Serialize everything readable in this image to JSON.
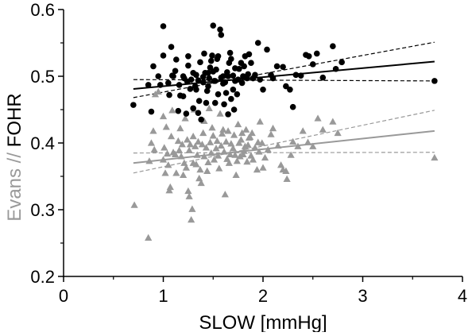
{
  "chart_data": {
    "type": "scatter",
    "xlabel": "SLOW [mmHg]",
    "ylabel_parts": [
      {
        "text": "Evans",
        "color": "#999999"
      },
      {
        "text": " // ",
        "color": "#999999"
      },
      {
        "text": "FOHR",
        "color": "#000000"
      }
    ],
    "xlim": [
      0,
      4
    ],
    "ylim": [
      0.2,
      0.6
    ],
    "xticks": [
      0,
      1,
      2,
      3,
      4
    ],
    "yticks": [
      0.2,
      0.3,
      0.4,
      0.5,
      0.6
    ],
    "xtick_labels": [
      "0",
      "1",
      "2",
      "3",
      "4"
    ],
    "ytick_labels": [
      "0.2",
      "0.3",
      "0.4",
      "0.5",
      "0.6"
    ],
    "grid": false,
    "legend": "none",
    "series": [
      {
        "marker": "circle",
        "color": "#000000",
        "points": [
          [
            0.7,
            0.457
          ],
          [
            0.85,
            0.487
          ],
          [
            0.88,
            0.447
          ],
          [
            0.9,
            0.515
          ],
          [
            0.95,
            0.5
          ],
          [
            0.97,
            0.487
          ],
          [
            1.0,
            0.531
          ],
          [
            1.0,
            0.575
          ],
          [
            1.05,
            0.49
          ],
          [
            1.06,
            0.472
          ],
          [
            1.08,
            0.544
          ],
          [
            1.09,
            0.501
          ],
          [
            1.1,
            0.5
          ],
          [
            1.12,
            0.508
          ],
          [
            1.13,
            0.525
          ],
          [
            1.15,
            0.448
          ],
          [
            1.16,
            0.487
          ],
          [
            1.17,
            0.471
          ],
          [
            1.2,
            0.5
          ],
          [
            1.2,
            0.47
          ],
          [
            1.21,
            0.497
          ],
          [
            1.23,
            0.444
          ],
          [
            1.24,
            0.492
          ],
          [
            1.25,
            0.53
          ],
          [
            1.25,
            0.516
          ],
          [
            1.27,
            0.481
          ],
          [
            1.28,
            0.495
          ],
          [
            1.3,
            0.505
          ],
          [
            1.3,
            0.452
          ],
          [
            1.32,
            0.485
          ],
          [
            1.33,
            0.502
          ],
          [
            1.33,
            0.48
          ],
          [
            1.35,
            0.494
          ],
          [
            1.35,
            0.445
          ],
          [
            1.36,
            0.463
          ],
          [
            1.37,
            0.521
          ],
          [
            1.38,
            0.435
          ],
          [
            1.4,
            0.499
          ],
          [
            1.4,
            0.491
          ],
          [
            1.41,
            0.534
          ],
          [
            1.42,
            0.505
          ],
          [
            1.43,
            0.46
          ],
          [
            1.44,
            0.478
          ],
          [
            1.45,
            0.505
          ],
          [
            1.45,
            0.485
          ],
          [
            1.46,
            0.497
          ],
          [
            1.47,
            0.513
          ],
          [
            1.48,
            0.523
          ],
          [
            1.49,
            0.531
          ],
          [
            1.5,
            0.576
          ],
          [
            1.5,
            0.507
          ],
          [
            1.51,
            0.493
          ],
          [
            1.52,
            0.493
          ],
          [
            1.52,
            0.46
          ],
          [
            1.53,
            0.51
          ],
          [
            1.54,
            0.526
          ],
          [
            1.55,
            0.473
          ],
          [
            1.55,
            0.53
          ],
          [
            1.57,
            0.57
          ],
          [
            1.58,
            0.498
          ],
          [
            1.58,
            0.562
          ],
          [
            1.6,
            0.489
          ],
          [
            1.6,
            0.5
          ],
          [
            1.61,
            0.458
          ],
          [
            1.62,
            0.491
          ],
          [
            1.63,
            0.475
          ],
          [
            1.64,
            0.506
          ],
          [
            1.65,
            0.443
          ],
          [
            1.65,
            0.5
          ],
          [
            1.66,
            0.52
          ],
          [
            1.67,
            0.535
          ],
          [
            1.68,
            0.526
          ],
          [
            1.68,
            0.466
          ],
          [
            1.7,
            0.501
          ],
          [
            1.7,
            0.48
          ],
          [
            1.71,
            0.45
          ],
          [
            1.72,
            0.493
          ],
          [
            1.72,
            0.512
          ],
          [
            1.74,
            0.473
          ],
          [
            1.75,
            0.495
          ],
          [
            1.76,
            0.511
          ],
          [
            1.78,
            0.52
          ],
          [
            1.79,
            0.49
          ],
          [
            1.8,
            0.5
          ],
          [
            1.81,
            0.515
          ],
          [
            1.82,
            0.53
          ],
          [
            1.84,
            0.497
          ],
          [
            1.85,
            0.503
          ],
          [
            1.86,
            0.533
          ],
          [
            1.88,
            0.52
          ],
          [
            1.9,
            0.497
          ],
          [
            1.92,
            0.502
          ],
          [
            1.95,
            0.55
          ],
          [
            1.97,
            0.495
          ],
          [
            2.0,
            0.48
          ],
          [
            2.04,
            0.54
          ],
          [
            2.08,
            0.502
          ],
          [
            2.1,
            0.497
          ],
          [
            2.14,
            0.515
          ],
          [
            2.2,
            0.514
          ],
          [
            2.23,
            0.485
          ],
          [
            2.27,
            0.48
          ],
          [
            2.3,
            0.454
          ],
          [
            2.33,
            0.502
          ],
          [
            2.38,
            0.501
          ],
          [
            2.43,
            0.532
          ],
          [
            2.46,
            0.53
          ],
          [
            2.5,
            0.518
          ],
          [
            2.54,
            0.534
          ],
          [
            2.6,
            0.498
          ],
          [
            2.7,
            0.545
          ],
          [
            2.73,
            0.511
          ],
          [
            2.79,
            0.521
          ],
          [
            3.72,
            0.493
          ]
        ]
      },
      {
        "marker": "triangle",
        "color": "#999999",
        "points": [
          [
            0.71,
            0.307
          ],
          [
            0.85,
            0.258
          ],
          [
            0.86,
            0.373
          ],
          [
            0.88,
            0.4
          ],
          [
            0.9,
            0.418
          ],
          [
            0.91,
            0.39
          ],
          [
            0.92,
            0.473
          ],
          [
            0.95,
            0.477
          ],
          [
            1.0,
            0.375
          ],
          [
            1.0,
            0.44
          ],
          [
            1.01,
            0.393
          ],
          [
            1.02,
            0.355
          ],
          [
            1.03,
            0.424
          ],
          [
            1.04,
            0.384
          ],
          [
            1.05,
            0.367
          ],
          [
            1.06,
            0.329
          ],
          [
            1.07,
            0.334
          ],
          [
            1.08,
            0.41
          ],
          [
            1.09,
            0.449
          ],
          [
            1.1,
            0.386
          ],
          [
            1.12,
            0.383
          ],
          [
            1.13,
            0.355
          ],
          [
            1.15,
            0.403
          ],
          [
            1.16,
            0.389
          ],
          [
            1.17,
            0.422
          ],
          [
            1.18,
            0.38
          ],
          [
            1.19,
            0.398
          ],
          [
            1.2,
            0.352
          ],
          [
            1.21,
            0.37
          ],
          [
            1.22,
            0.437
          ],
          [
            1.23,
            0.363
          ],
          [
            1.24,
            0.405
          ],
          [
            1.25,
            0.328
          ],
          [
            1.26,
            0.32
          ],
          [
            1.26,
            0.389
          ],
          [
            1.27,
            0.398
          ],
          [
            1.28,
            0.285
          ],
          [
            1.29,
            0.301
          ],
          [
            1.3,
            0.37
          ],
          [
            1.3,
            0.41
          ],
          [
            1.31,
            0.45
          ],
          [
            1.32,
            0.395
          ],
          [
            1.33,
            0.368
          ],
          [
            1.34,
            0.382
          ],
          [
            1.35,
            0.402
          ],
          [
            1.36,
            0.347
          ],
          [
            1.37,
            0.36
          ],
          [
            1.38,
            0.34
          ],
          [
            1.39,
            0.398
          ],
          [
            1.4,
            0.415
          ],
          [
            1.41,
            0.38
          ],
          [
            1.41,
            0.433
          ],
          [
            1.43,
            0.393
          ],
          [
            1.44,
            0.358
          ],
          [
            1.45,
            0.371
          ],
          [
            1.46,
            0.452
          ],
          [
            1.47,
            0.401
          ],
          [
            1.48,
            0.385
          ],
          [
            1.49,
            0.423
          ],
          [
            1.5,
            0.411
          ],
          [
            1.51,
            0.375
          ],
          [
            1.53,
            0.392
          ],
          [
            1.54,
            0.403
          ],
          [
            1.55,
            0.381
          ],
          [
            1.56,
            0.362
          ],
          [
            1.57,
            0.444
          ],
          [
            1.58,
            0.396
          ],
          [
            1.59,
            0.414
          ],
          [
            1.6,
            0.42
          ],
          [
            1.61,
            0.387
          ],
          [
            1.62,
            0.323
          ],
          [
            1.63,
            0.402
          ],
          [
            1.64,
            0.376
          ],
          [
            1.65,
            0.418
          ],
          [
            1.66,
            0.37
          ],
          [
            1.67,
            0.383
          ],
          [
            1.68,
            0.399
          ],
          [
            1.7,
            0.392
          ],
          [
            1.71,
            0.412
          ],
          [
            1.72,
            0.382
          ],
          [
            1.73,
            0.352
          ],
          [
            1.74,
            0.373
          ],
          [
            1.75,
            0.428
          ],
          [
            1.76,
            0.4
          ],
          [
            1.77,
            0.38
          ],
          [
            1.78,
            0.405
          ],
          [
            1.79,
            0.415
          ],
          [
            1.8,
            0.383
          ],
          [
            1.81,
            0.388
          ],
          [
            1.82,
            0.395
          ],
          [
            1.83,
            0.42
          ],
          [
            1.84,
            0.372
          ],
          [
            1.85,
            0.397
          ],
          [
            1.86,
            0.408
          ],
          [
            1.87,
            0.409
          ],
          [
            1.88,
            0.381
          ],
          [
            1.89,
            0.415
          ],
          [
            1.9,
            0.375
          ],
          [
            1.92,
            0.393
          ],
          [
            1.94,
            0.36
          ],
          [
            1.95,
            0.401
          ],
          [
            1.96,
            0.387
          ],
          [
            1.97,
            0.432
          ],
          [
            1.99,
            0.4
          ],
          [
            2.0,
            0.363
          ],
          [
            2.02,
            0.378
          ],
          [
            2.05,
            0.39
          ],
          [
            2.08,
            0.413
          ],
          [
            2.1,
            0.422
          ],
          [
            2.15,
            0.396
          ],
          [
            2.18,
            0.367
          ],
          [
            2.2,
            0.36
          ],
          [
            2.23,
            0.358
          ],
          [
            2.24,
            0.346
          ],
          [
            2.28,
            0.382
          ],
          [
            2.3,
            0.402
          ],
          [
            2.35,
            0.395
          ],
          [
            2.4,
            0.418
          ],
          [
            2.45,
            0.401
          ],
          [
            2.5,
            0.395
          ],
          [
            2.55,
            0.437
          ],
          [
            2.6,
            0.42
          ],
          [
            2.7,
            0.432
          ],
          [
            2.75,
            0.415
          ],
          [
            3.72,
            0.378
          ]
        ]
      }
    ],
    "regression_lines": [
      {
        "series": 0,
        "color": "#000000",
        "style": "solid",
        "x": [
          0.7,
          3.72
        ],
        "y": [
          0.481,
          0.522
        ]
      },
      {
        "series": 0,
        "color": "#000000",
        "style": "dashed",
        "x": [
          0.7,
          3.72
        ],
        "y": [
          0.468,
          0.551
        ]
      },
      {
        "series": 0,
        "color": "#000000",
        "style": "dashed",
        "x": [
          0.7,
          3.72
        ],
        "y": [
          0.495,
          0.493
        ]
      },
      {
        "series": 1,
        "color": "#999999",
        "style": "solid",
        "x": [
          0.7,
          3.72
        ],
        "y": [
          0.37,
          0.418
        ]
      },
      {
        "series": 1,
        "color": "#999999",
        "style": "dashed",
        "x": [
          0.7,
          3.72
        ],
        "y": [
          0.355,
          0.449
        ]
      },
      {
        "series": 1,
        "color": "#999999",
        "style": "dashed",
        "x": [
          0.7,
          3.72
        ],
        "y": [
          0.385,
          0.386
        ]
      }
    ]
  }
}
